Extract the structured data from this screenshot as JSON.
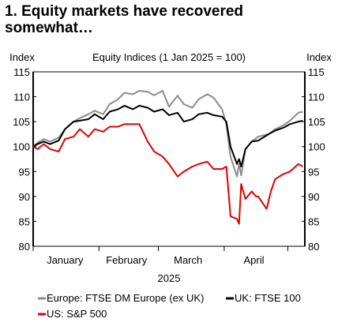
{
  "title_lines": [
    "1. Equity markets have recovered",
    "somewhat…"
  ],
  "chart_data": {
    "type": "line",
    "subtitle": "Equity Indices (1 Jan 2025 = 100)",
    "ylabel_left": "Index",
    "ylabel_right": "Index",
    "ylim": [
      80,
      115
    ],
    "yticks": [
      80,
      85,
      90,
      95,
      100,
      105,
      110,
      115
    ],
    "x_start": "2025-01-01",
    "x_end": "2025-05-09",
    "month_ticks": [
      "2025-01-01",
      "2025-02-01",
      "2025-03-01",
      "2025-04-01",
      "2025-05-01"
    ],
    "month_labels": [
      "January",
      "February",
      "March",
      "April"
    ],
    "month_label_dates": [
      "2025-01-16",
      "2025-02-14",
      "2025-03-15",
      "2025-04-15"
    ],
    "year_label": "2025",
    "grid": false,
    "legend_position": "bottom",
    "series": [
      {
        "name": "Europe: FTSE DM Europe (ex UK)",
        "color": "#8c8c8c",
        "x": [
          "2025-01-01",
          "2025-01-03",
          "2025-01-06",
          "2025-01-09",
          "2025-01-13",
          "2025-01-16",
          "2025-01-20",
          "2025-01-23",
          "2025-01-27",
          "2025-01-30",
          "2025-02-03",
          "2025-02-06",
          "2025-02-10",
          "2025-02-13",
          "2025-02-17",
          "2025-02-20",
          "2025-02-24",
          "2025-02-27",
          "2025-03-03",
          "2025-03-06",
          "2025-03-10",
          "2025-03-13",
          "2025-03-17",
          "2025-03-20",
          "2025-03-24",
          "2025-03-27",
          "2025-03-31",
          "2025-04-02",
          "2025-04-04",
          "2025-04-07",
          "2025-04-08",
          "2025-04-09",
          "2025-04-11",
          "2025-04-14",
          "2025-04-17",
          "2025-04-22",
          "2025-04-25",
          "2025-04-29",
          "2025-05-02",
          "2025-05-06",
          "2025-05-08"
        ],
        "y": [
          100,
          100.8,
          101.5,
          101,
          101.8,
          103.5,
          105,
          105.7,
          106.5,
          107.2,
          106.5,
          108.5,
          109.5,
          110.8,
          110.5,
          111.2,
          111,
          110.3,
          111.2,
          108,
          110.2,
          108.5,
          107.8,
          109.5,
          110.5,
          109.8,
          107.5,
          104.5,
          98,
          94,
          96.5,
          94.2,
          99.5,
          101,
          102,
          102.5,
          103.5,
          104.3,
          105.2,
          106.8,
          107
        ]
      },
      {
        "name": "UK: FTSE 100",
        "color": "#000000",
        "x": [
          "2025-01-01",
          "2025-01-03",
          "2025-01-06",
          "2025-01-09",
          "2025-01-13",
          "2025-01-16",
          "2025-01-20",
          "2025-01-23",
          "2025-01-27",
          "2025-01-30",
          "2025-02-03",
          "2025-02-06",
          "2025-02-10",
          "2025-02-13",
          "2025-02-17",
          "2025-02-20",
          "2025-02-24",
          "2025-02-27",
          "2025-03-03",
          "2025-03-06",
          "2025-03-10",
          "2025-03-13",
          "2025-03-17",
          "2025-03-20",
          "2025-03-24",
          "2025-03-27",
          "2025-03-31",
          "2025-04-02",
          "2025-04-04",
          "2025-04-07",
          "2025-04-08",
          "2025-04-09",
          "2025-04-11",
          "2025-04-14",
          "2025-04-17",
          "2025-04-22",
          "2025-04-25",
          "2025-04-29",
          "2025-05-02",
          "2025-05-06",
          "2025-05-08"
        ],
        "y": [
          100,
          100.5,
          101,
          100.5,
          101.2,
          103.5,
          105,
          105.2,
          105.5,
          106.5,
          105.5,
          107,
          107.5,
          108.2,
          107.5,
          108.2,
          107.8,
          107,
          107.5,
          106.3,
          106.8,
          105,
          105.5,
          106.5,
          106.8,
          106.3,
          106,
          105,
          100,
          96.5,
          97.5,
          96,
          99.5,
          101,
          101.2,
          102.5,
          103.2,
          103.8,
          104.5,
          105,
          105.2
        ]
      },
      {
        "name": "US: S&P 500",
        "color": "#e00000",
        "x": [
          "2025-01-01",
          "2025-01-03",
          "2025-01-06",
          "2025-01-09",
          "2025-01-13",
          "2025-01-16",
          "2025-01-20",
          "2025-01-23",
          "2025-01-27",
          "2025-01-30",
          "2025-02-03",
          "2025-02-06",
          "2025-02-10",
          "2025-02-13",
          "2025-02-17",
          "2025-02-20",
          "2025-02-24",
          "2025-02-27",
          "2025-03-03",
          "2025-03-06",
          "2025-03-10",
          "2025-03-13",
          "2025-03-17",
          "2025-03-20",
          "2025-03-24",
          "2025-03-27",
          "2025-03-31",
          "2025-04-02",
          "2025-04-03",
          "2025-04-04",
          "2025-04-07",
          "2025-04-08",
          "2025-04-09",
          "2025-04-11",
          "2025-04-14",
          "2025-04-16",
          "2025-04-17",
          "2025-04-21",
          "2025-04-23",
          "2025-04-25",
          "2025-04-29",
          "2025-05-02",
          "2025-05-06",
          "2025-05-08"
        ],
        "y": [
          100,
          99.5,
          100.5,
          99.5,
          99,
          101.5,
          102,
          103.5,
          102,
          103.5,
          103,
          104,
          104,
          104.5,
          104.5,
          104.5,
          101,
          99,
          98,
          96.5,
          94,
          95,
          96,
          96.5,
          97,
          95.5,
          95.5,
          96,
          91,
          86,
          85.5,
          84.5,
          92.5,
          89.5,
          91,
          90,
          90,
          87.5,
          91,
          93.5,
          94.5,
          95,
          96.5,
          96
        ]
      }
    ]
  }
}
